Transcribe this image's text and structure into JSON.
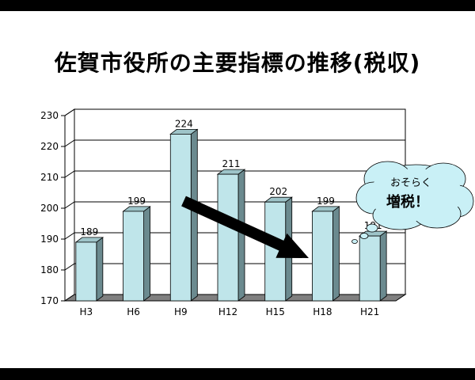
{
  "slide": {
    "title": "佐賀市役所の主要指標の推移(税収)"
  },
  "callout": {
    "line1": "おそらく",
    "line2": "増税！",
    "fill_color": "#c9f0f6"
  },
  "colors": {
    "bar_front": "#bfe5ea",
    "bar_side": "#6b8a8f",
    "bar_top": "#9ec4c9",
    "arrow": "#000000"
  },
  "chart_data": {
    "type": "bar",
    "title": "",
    "xlabel": "",
    "ylabel": "",
    "categories": [
      "H3",
      "H6",
      "H9",
      "H12",
      "H15",
      "H18",
      "H21"
    ],
    "values": [
      189,
      199,
      224,
      211,
      202,
      199,
      191
    ],
    "data_labels": [
      "189",
      "199",
      "224",
      "211",
      "202",
      "199",
      "191"
    ],
    "ylim": [
      170,
      230
    ],
    "yticks": [
      170,
      180,
      190,
      200,
      210,
      220,
      230
    ],
    "grid": true,
    "legend": "none",
    "three_d": true
  }
}
